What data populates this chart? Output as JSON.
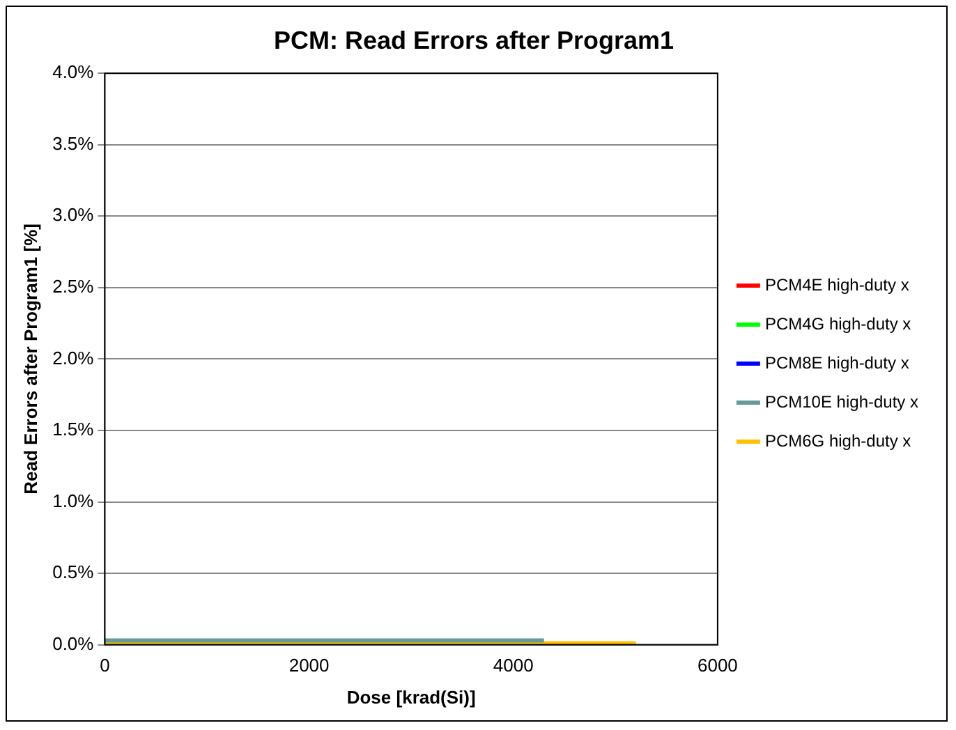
{
  "chart_data": {
    "type": "line",
    "title": "PCM: Read Errors after Program1",
    "xlabel": "Dose [krad(Si)]",
    "ylabel": "Read Errors after Program1 [%]",
    "xlim": [
      0,
      6000
    ],
    "xticks": [
      0,
      2000,
      4000,
      6000
    ],
    "ylim": [
      0,
      4
    ],
    "yticks": [
      {
        "value": 0,
        "label": "0.0%"
      },
      {
        "value": 0.5,
        "label": "0.5%"
      },
      {
        "value": 1,
        "label": "1.0%"
      },
      {
        "value": 1.5,
        "label": "1.5%"
      },
      {
        "value": 2,
        "label": "2.0%"
      },
      {
        "value": 2.5,
        "label": "2.5%"
      },
      {
        "value": 3,
        "label": "3.0%"
      },
      {
        "value": 3.5,
        "label": "3.5%"
      },
      {
        "value": 4,
        "label": "4.0%"
      }
    ],
    "grid": "y",
    "legend": "right",
    "marker": "none",
    "line_style": "solid",
    "series": [
      {
        "name": "PCM4E high-duty x",
        "color": "#ff0000"
      },
      {
        "name": "PCM4G high-duty x",
        "color": "#00ff00"
      },
      {
        "name": "PCM8E high-duty x",
        "color": "#0000ff"
      },
      {
        "name": "PCM10E high-duty x",
        "color": "#669999",
        "x": [
          0,
          1000,
          2000,
          3000,
          4300
        ],
        "values": [
          0.03,
          0.03,
          0.03,
          0.03,
          0.03
        ]
      },
      {
        "name": "PCM6G high-duty x",
        "color": "#ffc000",
        "x": [
          0,
          1000,
          2000,
          3000,
          4000,
          5200
        ],
        "values": [
          0.01,
          0.01,
          0.01,
          0.01,
          0.01,
          0.01
        ]
      }
    ]
  }
}
